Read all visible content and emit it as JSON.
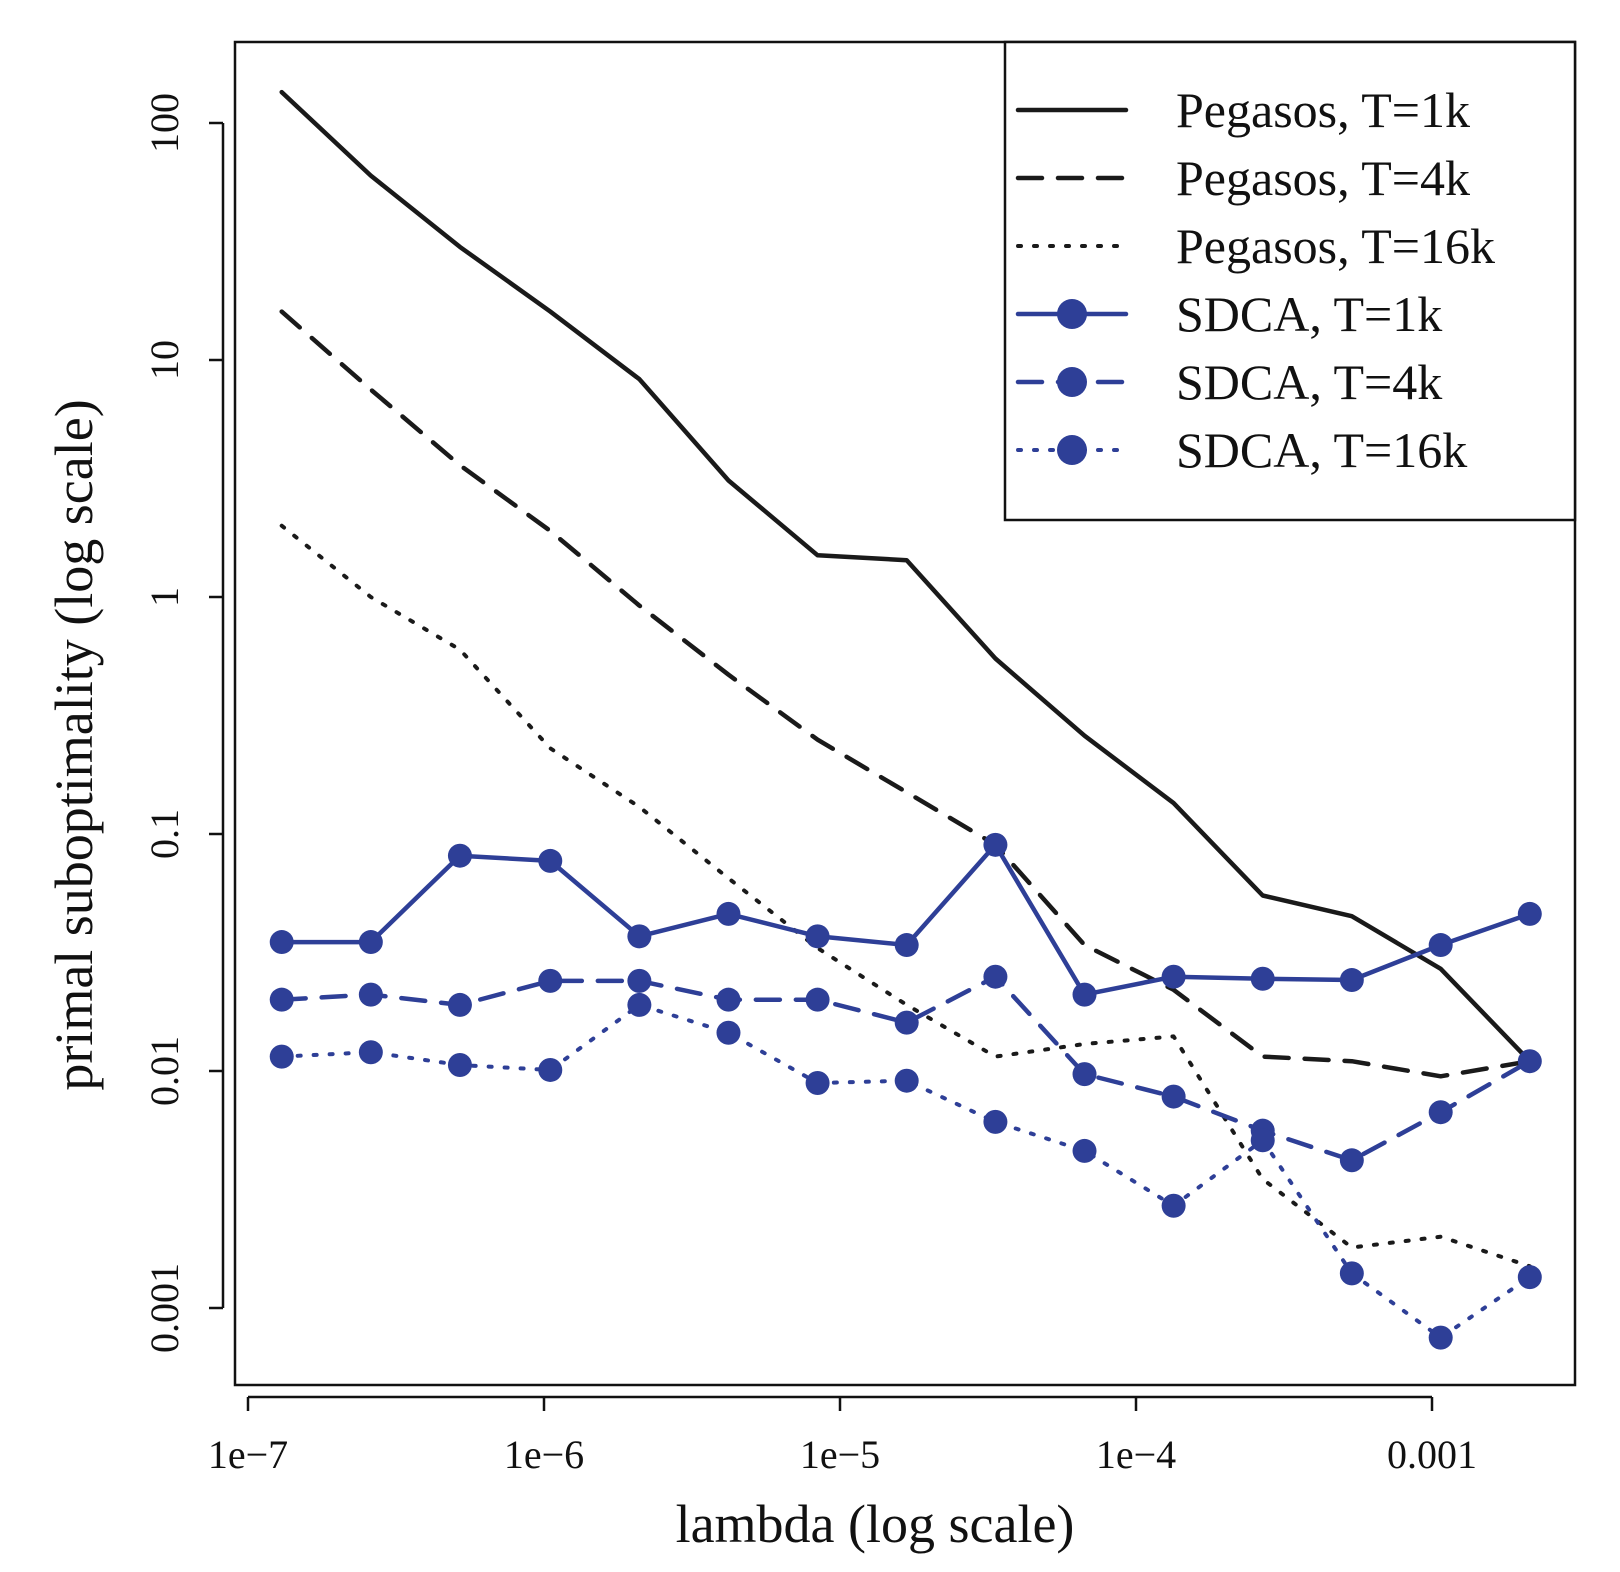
{
  "colors": {
    "pegasos": "#1a1a1a",
    "sdca": "#2e3f97"
  },
  "chart_data": {
    "type": "line",
    "xlabel": "lambda (log scale)",
    "ylabel": "primal suboptimality (log scale)",
    "x_scale": "log",
    "y_scale": "log",
    "xlim": [
      1e-07,
      0.0025
    ],
    "ylim": [
      0.00035,
      220
    ],
    "x_ticks": [
      1e-07,
      1e-06,
      1e-05,
      0.0001,
      0.001
    ],
    "x_tick_labels": [
      "1e−7",
      "1e−6",
      "1e−5",
      "1e−4",
      "0.001"
    ],
    "y_ticks": [
      0.001,
      0.01,
      0.1,
      1,
      10,
      100
    ],
    "y_tick_labels": [
      "0.001",
      "0.01",
      "0.1",
      "1",
      "10",
      "100"
    ],
    "grid": false,
    "legend_position": "top-right",
    "x": [
      1.3e-07,
      2.6e-07,
      5.2e-07,
      1.05e-06,
      2.1e-06,
      4.2e-06,
      8.4e-06,
      1.68e-05,
      3.35e-05,
      6.7e-05,
      0.000134,
      0.000268,
      0.000536,
      0.00107,
      0.00214
    ],
    "series": [
      {
        "name": "Pegasos, T=1k",
        "style": "solid",
        "marker": false,
        "values": [
          135,
          60,
          30,
          16,
          8.3,
          3.1,
          1.5,
          1.43,
          0.55,
          0.26,
          0.135,
          0.055,
          0.045,
          0.027,
          0.011
        ]
      },
      {
        "name": "Pegasos, T=4k",
        "style": "dashed",
        "marker": false,
        "values": [
          16,
          7.5,
          3.6,
          1.9,
          0.92,
          0.47,
          0.25,
          0.15,
          0.09,
          0.034,
          0.022,
          0.0115,
          0.011,
          0.0095,
          0.011
        ]
      },
      {
        "name": "Pegasos, T=16k",
        "style": "dotted",
        "marker": false,
        "values": [
          2.0,
          1.0,
          0.6,
          0.23,
          0.13,
          0.065,
          0.033,
          0.019,
          0.0115,
          0.013,
          0.014,
          0.0035,
          0.0018,
          0.002,
          0.0015
        ]
      },
      {
        "name": "SDCA, T=1k",
        "style": "solid",
        "marker": true,
        "values": [
          0.035,
          0.035,
          0.081,
          0.077,
          0.037,
          0.046,
          0.037,
          0.034,
          0.09,
          0.021,
          0.025,
          0.0245,
          0.0242,
          0.034,
          0.046
        ]
      },
      {
        "name": "SDCA, T=4k",
        "style": "dashed",
        "marker": true,
        "values": [
          0.02,
          0.021,
          0.019,
          0.024,
          0.024,
          0.02,
          0.02,
          0.016,
          0.025,
          0.0097,
          0.0078,
          0.0056,
          0.0042,
          0.0067,
          0.011
        ]
      },
      {
        "name": "SDCA, T=16k",
        "style": "dotted",
        "marker": true,
        "values": [
          0.0115,
          0.012,
          0.0106,
          0.0101,
          0.019,
          0.0145,
          0.0089,
          0.0091,
          0.0061,
          0.0046,
          0.0027,
          0.0051,
          0.0014,
          0.00075,
          0.00135
        ]
      }
    ]
  }
}
